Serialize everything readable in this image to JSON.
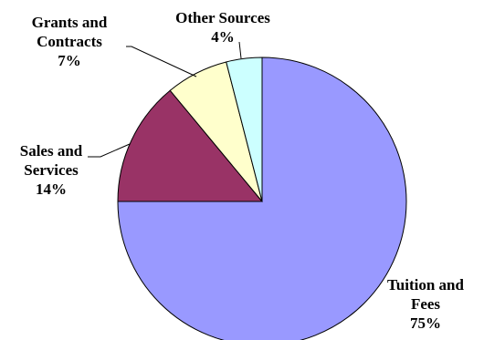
{
  "chart_data": {
    "type": "pie",
    "title": "",
    "slices": [
      {
        "label": [
          "Tuition and",
          "Fees"
        ],
        "value": 75,
        "value_label": "75%",
        "color": "#9999ff"
      },
      {
        "label": [
          "Sales and",
          "Services"
        ],
        "value": 14,
        "value_label": "14%",
        "color": "#993366"
      },
      {
        "label": [
          "Grants and",
          "Contracts"
        ],
        "value": 7,
        "value_label": "7%",
        "color": "#ffffcc"
      },
      {
        "label": [
          "Other Sources"
        ],
        "value": 4,
        "value_label": "4%",
        "color": "#ccffff"
      }
    ],
    "start": "12 o'clock",
    "direction": "clockwise",
    "legend": "none"
  }
}
